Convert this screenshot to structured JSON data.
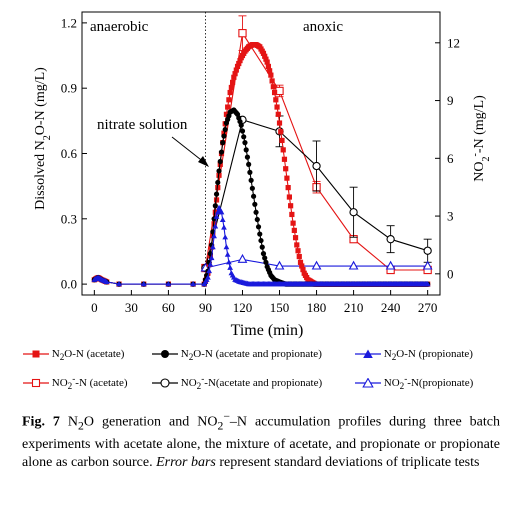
{
  "chart_data": {
    "type": "line",
    "xlabel": "Time (min)",
    "ylabel_left": "Dissolved N2O-N (mg/L)",
    "ylabel_right": "NO2−-N (mg/L)",
    "xlim": [
      -10,
      280
    ],
    "ylim_left": [
      -0.05,
      1.25
    ],
    "ylim_right": [
      -1.1,
      13.6
    ],
    "xticks": [
      0,
      30,
      60,
      90,
      120,
      150,
      180,
      210,
      240,
      270
    ],
    "yticks_left": [
      "0.0",
      "0.3",
      "0.6",
      "0.9",
      "1.2"
    ],
    "yticks_right": [
      "0",
      "3",
      "6",
      "9",
      "12"
    ],
    "phase_divider_x": 90,
    "annotations": {
      "anaerobic": "anaerobic",
      "anoxic": "anoxic",
      "nitrate": "nitrate solution"
    },
    "series": [
      {
        "name": "N2O-N (acetate)",
        "axis": "left",
        "color": "#e41414",
        "marker": "square-filled",
        "dense": true,
        "x": [
          0,
          3,
          6,
          10,
          20,
          40,
          60,
          80,
          89,
          92,
          95,
          98,
          101,
          104,
          107,
          110,
          113,
          116,
          119,
          122,
          125,
          128,
          131,
          134,
          137,
          140,
          143,
          146,
          149,
          152,
          155,
          158,
          161,
          164,
          167,
          170,
          173,
          176,
          179,
          190,
          210,
          240,
          270
        ],
        "y": [
          0.02,
          0.03,
          0.02,
          0.01,
          0.0,
          0.0,
          0.0,
          0.0,
          0.0,
          0.05,
          0.17,
          0.33,
          0.5,
          0.65,
          0.78,
          0.88,
          0.95,
          1.0,
          1.04,
          1.07,
          1.09,
          1.1,
          1.1,
          1.09,
          1.06,
          1.02,
          0.96,
          0.88,
          0.78,
          0.66,
          0.53,
          0.4,
          0.28,
          0.18,
          0.1,
          0.05,
          0.02,
          0.01,
          0.0,
          0.0,
          0.0,
          0.0,
          0.0
        ]
      },
      {
        "name": "N2O-N (acetate and propionate)",
        "axis": "left",
        "color": "#000000",
        "marker": "circle-filled",
        "dense": true,
        "x": [
          0,
          3,
          6,
          10,
          20,
          40,
          60,
          80,
          89,
          92,
          95,
          98,
          101,
          104,
          107,
          110,
          113,
          116,
          119,
          122,
          125,
          128,
          131,
          134,
          137,
          140,
          143,
          146,
          150,
          155,
          170,
          200,
          240,
          270
        ],
        "y": [
          0.02,
          0.03,
          0.02,
          0.01,
          0.0,
          0.0,
          0.0,
          0.0,
          0.0,
          0.06,
          0.18,
          0.36,
          0.52,
          0.65,
          0.74,
          0.79,
          0.8,
          0.78,
          0.73,
          0.65,
          0.55,
          0.44,
          0.33,
          0.23,
          0.14,
          0.08,
          0.04,
          0.02,
          0.01,
          0.0,
          0.0,
          0.0,
          0.0,
          0.0
        ]
      },
      {
        "name": "N2O-N (propionate)",
        "axis": "left",
        "color": "#1a1adc",
        "marker": "triangle-filled",
        "dense": true,
        "x": [
          0,
          3,
          6,
          10,
          20,
          40,
          60,
          80,
          89,
          92,
          95,
          97,
          99,
          101,
          103,
          105,
          107,
          109,
          111,
          114,
          118,
          125,
          140,
          170,
          210,
          240,
          270
        ],
        "y": [
          0.02,
          0.03,
          0.02,
          0.01,
          0.0,
          0.0,
          0.0,
          0.0,
          0.0,
          0.03,
          0.12,
          0.22,
          0.31,
          0.35,
          0.33,
          0.26,
          0.17,
          0.1,
          0.05,
          0.02,
          0.01,
          0.0,
          0.0,
          0.0,
          0.0,
          0.0,
          0.0
        ]
      },
      {
        "name": "NO2−-N (acetate)",
        "axis": "right",
        "color": "#e41414",
        "marker": "square-open",
        "x": [
          90,
          120,
          150,
          180,
          210,
          240,
          270
        ],
        "y": [
          0.3,
          12.5,
          9.5,
          4.5,
          1.8,
          0.2,
          0.2
        ],
        "err": [
          0,
          0.9,
          0.3,
          0.3,
          0,
          0,
          0
        ]
      },
      {
        "name": "NO2−-N (acetate and propionate)",
        "axis": "right",
        "color": "#000000",
        "marker": "circle-open",
        "x": [
          90,
          120,
          150,
          180,
          210,
          240,
          270
        ],
        "y": [
          0.3,
          8.0,
          7.4,
          5.6,
          3.2,
          1.8,
          1.2
        ],
        "err": [
          0,
          0,
          0.8,
          1.3,
          1.3,
          0.7,
          0.6
        ]
      },
      {
        "name": "NO2−-N (propionate)",
        "axis": "right",
        "color": "#1a1adc",
        "marker": "triangle-open",
        "x": [
          90,
          120,
          150,
          180,
          210,
          240,
          270
        ],
        "y": [
          0.3,
          0.75,
          0.4,
          0.4,
          0.4,
          0.4,
          0.4
        ],
        "err": [
          0,
          0,
          0,
          0,
          0,
          0,
          0
        ]
      }
    ],
    "legend": [
      "N2O-N (acetate)",
      "N2O-N (acetate and propionate)",
      "N2O-N (propionate)",
      "NO2−-N (acetate)",
      "NO2−-N(acetate and propionate)",
      "NO2−-N(propionate)"
    ]
  },
  "caption": {
    "label": "Fig. 7",
    "text1": " N",
    "sub2": "2",
    "text2": "O generation and NO",
    "sub3": "2",
    "sup3": "−",
    "text3": "–N accumulation profiles during three batch experiments with acetate alone, the mixture of acetate, and propionate or propionate alone as carbon source. ",
    "italic": "Error bars",
    "text4": " represent standard deviations of triplicate tests"
  }
}
